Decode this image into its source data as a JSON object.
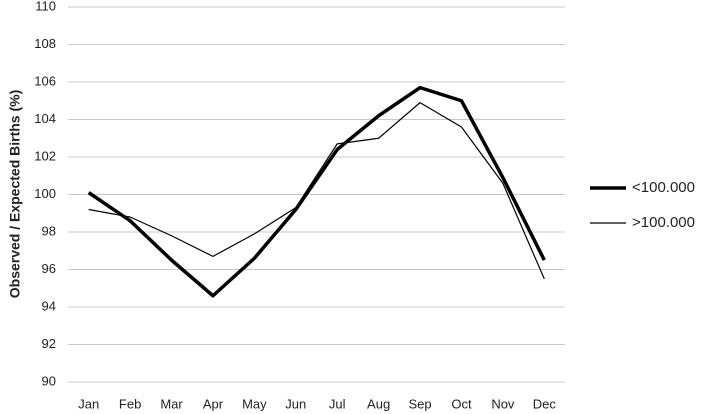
{
  "chart_data": {
    "type": "line",
    "y_label": "Observed / Expected Births (%)",
    "categories": [
      "Jan",
      "Feb",
      "Mar",
      "Apr",
      "May",
      "Jun",
      "Jul",
      "Aug",
      "Sep",
      "Oct",
      "Nov",
      "Dec"
    ],
    "series": [
      {
        "name": "<100.000",
        "color": "#000000",
        "line_width": 3.5,
        "values": [
          100.1,
          98.6,
          96.5,
          94.6,
          96.6,
          99.2,
          102.4,
          104.2,
          105.7,
          105.0,
          100.9,
          96.5
        ]
      },
      {
        "name": ">100.000",
        "color": "#000000",
        "line_width": 1.2,
        "values": [
          99.2,
          98.8,
          97.8,
          96.7,
          97.9,
          99.3,
          102.7,
          103.0,
          104.9,
          103.6,
          100.6,
          95.5
        ]
      }
    ],
    "ylim": [
      90,
      110
    ],
    "yticks": [
      90,
      92,
      94,
      96,
      98,
      100,
      102,
      104,
      106,
      108,
      110
    ],
    "grid": true,
    "legend": "right"
  }
}
